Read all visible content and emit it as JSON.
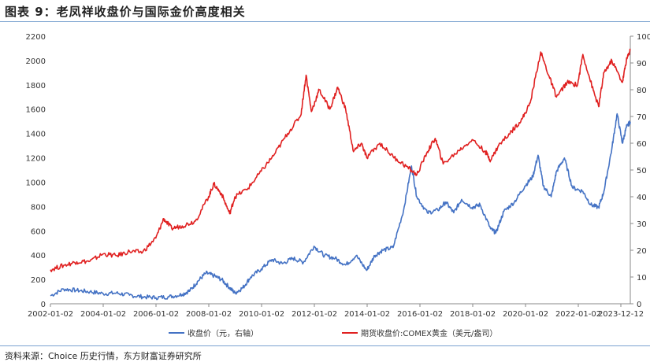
{
  "title": "图表 9：老凤祥收盘价与国际金价高度相关",
  "source": "资料来源：Choice 历史行情，东方财富证券研究所",
  "chart_data": {
    "type": "line",
    "x_ticks": [
      "2002-01-02",
      "2004-01-02",
      "2006-01-02",
      "2008-01-02",
      "2010-01-02",
      "2012-01-02",
      "2014-01-02",
      "2016-01-02",
      "2018-01-02",
      "2020-01-02",
      "2022-01-02",
      "2023-12-12"
    ],
    "y_left_ticks": [
      0,
      200,
      400,
      600,
      800,
      1000,
      1200,
      1400,
      1600,
      1800,
      2000,
      2200
    ],
    "y_right_ticks": [
      0,
      10,
      20,
      30,
      40,
      50,
      60,
      70,
      80,
      90,
      100
    ],
    "ylim_left": [
      0,
      2200
    ],
    "ylim_right": [
      0,
      100
    ],
    "xlim": [
      2002.0,
      2024.0
    ],
    "series": [
      {
        "name": "收盘价（元，右轴）",
        "axis": "right",
        "color": "#4472c4",
        "points": [
          [
            2002.0,
            3.0
          ],
          [
            2002.5,
            5.5
          ],
          [
            2003.0,
            5.0
          ],
          [
            2003.5,
            4.5
          ],
          [
            2004.0,
            3.8
          ],
          [
            2004.5,
            4.0
          ],
          [
            2005.0,
            3.2
          ],
          [
            2005.5,
            2.6
          ],
          [
            2006.0,
            2.3
          ],
          [
            2006.5,
            2.6
          ],
          [
            2007.0,
            3.5
          ],
          [
            2007.3,
            5.0
          ],
          [
            2007.6,
            8.5
          ],
          [
            2007.9,
            11.5
          ],
          [
            2008.2,
            10.5
          ],
          [
            2008.5,
            9.0
          ],
          [
            2008.8,
            6.0
          ],
          [
            2009.0,
            4.0
          ],
          [
            2009.3,
            6.0
          ],
          [
            2009.6,
            10.0
          ],
          [
            2010.0,
            13.0
          ],
          [
            2010.4,
            16.5
          ],
          [
            2010.8,
            15.0
          ],
          [
            2011.2,
            17.0
          ],
          [
            2011.6,
            15.5
          ],
          [
            2012.0,
            21.5
          ],
          [
            2012.4,
            18.0
          ],
          [
            2012.8,
            17.0
          ],
          [
            2013.2,
            14.5
          ],
          [
            2013.6,
            18.0
          ],
          [
            2014.0,
            12.5
          ],
          [
            2014.3,
            18.0
          ],
          [
            2014.6,
            20.0
          ],
          [
            2015.0,
            21.0
          ],
          [
            2015.4,
            35.0
          ],
          [
            2015.7,
            51.5
          ],
          [
            2015.9,
            40.0
          ],
          [
            2016.3,
            34.0
          ],
          [
            2016.7,
            35.0
          ],
          [
            2017.0,
            38.0
          ],
          [
            2017.3,
            34.0
          ],
          [
            2017.6,
            39.0
          ],
          [
            2018.0,
            36.0
          ],
          [
            2018.3,
            37.0
          ],
          [
            2018.7,
            28.0
          ],
          [
            2018.9,
            26.5
          ],
          [
            2019.2,
            34.5
          ],
          [
            2019.6,
            38.0
          ],
          [
            2020.0,
            44.0
          ],
          [
            2020.3,
            47.5
          ],
          [
            2020.5,
            55.5
          ],
          [
            2020.7,
            44.0
          ],
          [
            2021.0,
            40.0
          ],
          [
            2021.2,
            49.5
          ],
          [
            2021.5,
            54.5
          ],
          [
            2021.8,
            43.5
          ],
          [
            2022.2,
            42.0
          ],
          [
            2022.5,
            37.0
          ],
          [
            2022.8,
            36.0
          ],
          [
            2023.0,
            42.0
          ],
          [
            2023.3,
            58.0
          ],
          [
            2023.5,
            71.0
          ],
          [
            2023.7,
            60.0
          ],
          [
            2023.85,
            66.0
          ],
          [
            2024.0,
            68.0
          ]
        ]
      },
      {
        "name": "期货收盘价:COMEX黄金（美元/盎司）",
        "axis": "left",
        "color": "#e02020",
        "points": [
          [
            2002.0,
            280
          ],
          [
            2002.5,
            315
          ],
          [
            2003.0,
            345
          ],
          [
            2003.5,
            350
          ],
          [
            2004.0,
            410
          ],
          [
            2004.5,
            395
          ],
          [
            2005.0,
            430
          ],
          [
            2005.5,
            425
          ],
          [
            2006.0,
            540
          ],
          [
            2006.3,
            700
          ],
          [
            2006.6,
            620
          ],
          [
            2007.0,
            640
          ],
          [
            2007.5,
            680
          ],
          [
            2008.0,
            880
          ],
          [
            2008.2,
            985
          ],
          [
            2008.5,
            900
          ],
          [
            2008.8,
            740
          ],
          [
            2009.0,
            880
          ],
          [
            2009.5,
            950
          ],
          [
            2010.0,
            1090
          ],
          [
            2010.5,
            1230
          ],
          [
            2011.0,
            1400
          ],
          [
            2011.5,
            1550
          ],
          [
            2011.7,
            1880
          ],
          [
            2011.9,
            1580
          ],
          [
            2012.2,
            1760
          ],
          [
            2012.6,
            1600
          ],
          [
            2012.9,
            1780
          ],
          [
            2013.2,
            1600
          ],
          [
            2013.5,
            1250
          ],
          [
            2013.8,
            1320
          ],
          [
            2014.0,
            1200
          ],
          [
            2014.5,
            1320
          ],
          [
            2015.0,
            1210
          ],
          [
            2015.5,
            1130
          ],
          [
            2015.9,
            1060
          ],
          [
            2016.3,
            1250
          ],
          [
            2016.6,
            1360
          ],
          [
            2016.9,
            1150
          ],
          [
            2017.5,
            1260
          ],
          [
            2018.0,
            1350
          ],
          [
            2018.5,
            1250
          ],
          [
            2018.7,
            1180
          ],
          [
            2019.0,
            1300
          ],
          [
            2019.5,
            1420
          ],
          [
            2019.9,
            1520
          ],
          [
            2020.2,
            1650
          ],
          [
            2020.6,
            2070
          ],
          [
            2020.9,
            1880
          ],
          [
            2021.2,
            1700
          ],
          [
            2021.6,
            1820
          ],
          [
            2022.0,
            1800
          ],
          [
            2022.2,
            2050
          ],
          [
            2022.6,
            1750
          ],
          [
            2022.8,
            1620
          ],
          [
            2023.0,
            1900
          ],
          [
            2023.3,
            2000
          ],
          [
            2023.7,
            1820
          ],
          [
            2023.85,
            2000
          ],
          [
            2024.0,
            2090
          ]
        ]
      }
    ],
    "legend_position": "bottom",
    "grid": false
  }
}
